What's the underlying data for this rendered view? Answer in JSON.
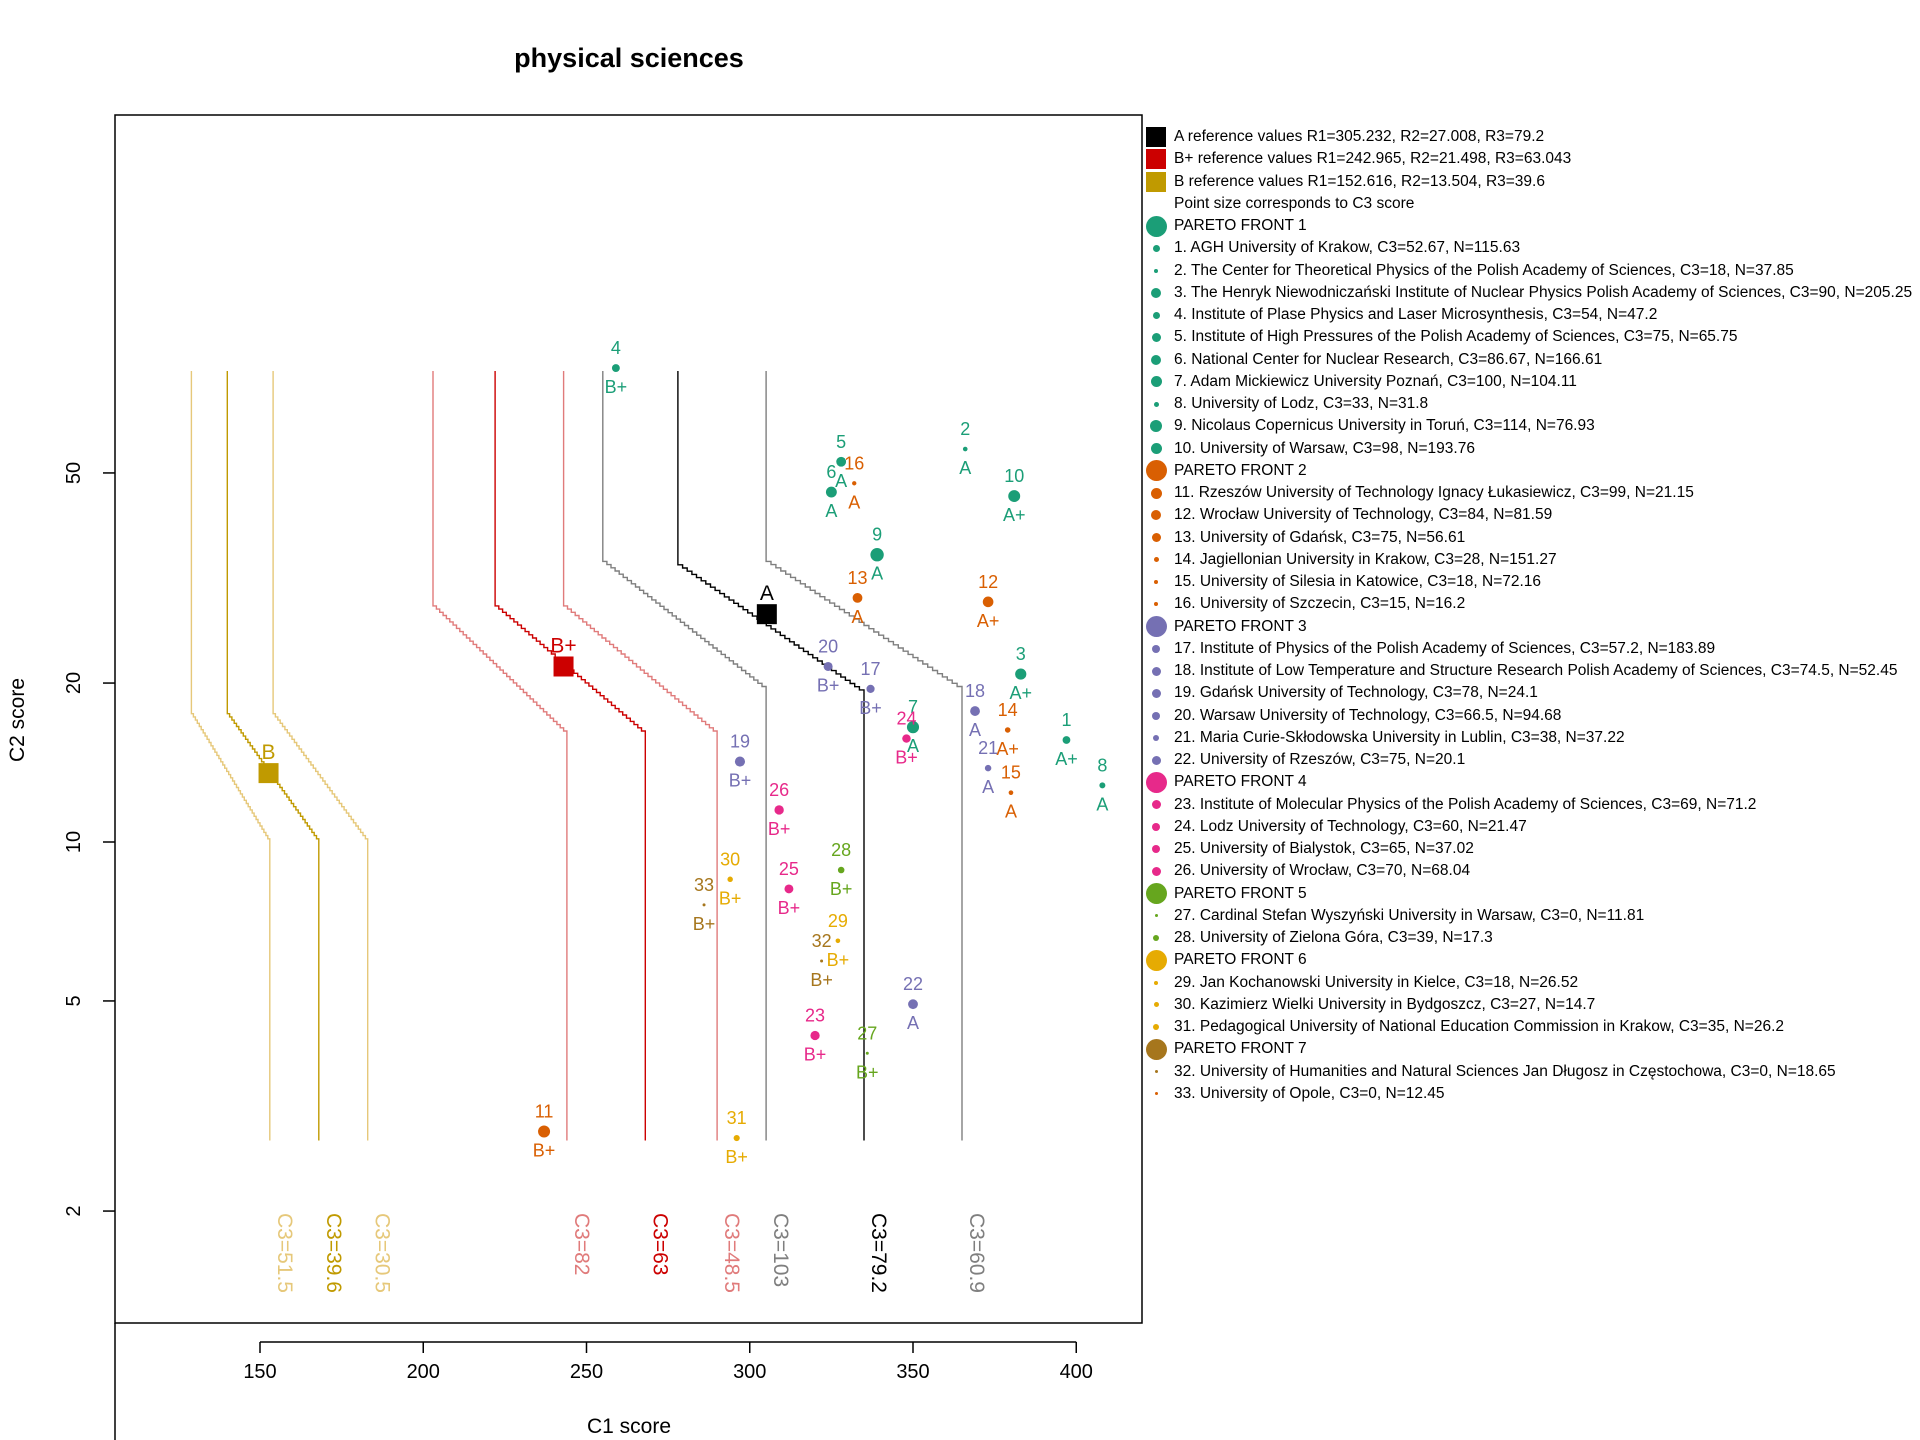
{
  "chart_data": {
    "type": "scatter",
    "title": "physical sciences",
    "xlabel": "C1 score",
    "ylabel": "C2 score",
    "x_scale": "linear",
    "y_scale": "log",
    "xlim": [
      100,
      420
    ],
    "ylim": [
      1.5,
      90
    ],
    "x_ticks": [
      150,
      200,
      250,
      300,
      350,
      400
    ],
    "y_ticks": [
      2,
      5,
      10,
      20,
      50
    ],
    "grid": false,
    "legend_position": "right",
    "colors": {
      "front1": "#1b9e77",
      "front2": "#d95f02",
      "front3": "#7570b3",
      "front4": "#e7298a",
      "front5": "#66a61e",
      "front6": "#e6ab02",
      "front7": "#a6761d",
      "A": "#000000",
      "A_band": "#7f7f7f",
      "Bplus": "#cc0000",
      "Bplus_band": "#e07b7b",
      "B": "#c09a00",
      "B_band": "#e6c87a"
    },
    "reference_points": [
      {
        "label": "A",
        "x": 305.232,
        "y": 27.008,
        "color": "#000000"
      },
      {
        "label": "B+",
        "x": 242.965,
        "y": 21.498,
        "color": "#cc0000"
      },
      {
        "label": "B",
        "x": 152.616,
        "y": 13.504,
        "color": "#c09a00"
      }
    ],
    "reference_curves": [
      {
        "label": "C3=79.2",
        "color": "#000000",
        "top_x": 278,
        "bend_y": 33.5,
        "x_low": 335
      },
      {
        "label": "C3=103",
        "color": "#7f7f7f",
        "top_x": 255,
        "bend_y": 34,
        "x_low": 305
      },
      {
        "label": "C3=60.9",
        "color": "#7f7f7f",
        "top_x": 305,
        "bend_y": 34,
        "x_low": 365
      },
      {
        "label": "C3=63",
        "color": "#cc0000",
        "top_x": 222,
        "bend_y": 28,
        "x_low": 268
      },
      {
        "label": "C3=82",
        "color": "#e07b7b",
        "top_x": 203,
        "bend_y": 28,
        "x_low": 244
      },
      {
        "label": "C3=48.5",
        "color": "#e07b7b",
        "top_x": 243,
        "bend_y": 28,
        "x_low": 290
      },
      {
        "label": "C3=39.6",
        "color": "#c09a00",
        "top_x": 140,
        "bend_y": 17.5,
        "x_low": 168
      },
      {
        "label": "C3=51.5",
        "color": "#e6c87a",
        "top_x": 129,
        "bend_y": 17.5,
        "x_low": 153
      },
      {
        "label": "C3=30.5",
        "color": "#e6c87a",
        "top_x": 154,
        "bend_y": 17.5,
        "x_low": 183
      }
    ],
    "points": [
      {
        "id": "1",
        "x": 397,
        "y": 15.6,
        "grade": "A+",
        "front": 1,
        "c3": 52.67
      },
      {
        "id": "2",
        "x": 366,
        "y": 55.5,
        "grade": "A",
        "front": 1,
        "c3": 18
      },
      {
        "id": "3",
        "x": 383,
        "y": 20.8,
        "grade": "A+",
        "front": 1,
        "c3": 90
      },
      {
        "id": "4",
        "x": 259,
        "y": 79,
        "grade": "B+",
        "front": 1,
        "c3": 54
      },
      {
        "id": "5",
        "x": 328,
        "y": 52.5,
        "grade": "A",
        "front": 1,
        "c3": 75
      },
      {
        "id": "6",
        "x": 325,
        "y": 46,
        "grade": "A",
        "front": 1,
        "c3": 86.67
      },
      {
        "id": "7",
        "x": 350,
        "y": 16.5,
        "grade": "A",
        "front": 1,
        "c3": 100
      },
      {
        "id": "8",
        "x": 408,
        "y": 12.8,
        "grade": "A",
        "front": 1,
        "c3": 33
      },
      {
        "id": "9",
        "x": 339,
        "y": 35,
        "grade": "A",
        "front": 1,
        "c3": 114
      },
      {
        "id": "10",
        "x": 381,
        "y": 45.2,
        "grade": "A+",
        "front": 1,
        "c3": 98
      },
      {
        "id": "11",
        "x": 237,
        "y": 2.83,
        "grade": "B+",
        "front": 2,
        "c3": 99
      },
      {
        "id": "12",
        "x": 373,
        "y": 28.5,
        "grade": "A+",
        "front": 2,
        "c3": 84
      },
      {
        "id": "13",
        "x": 333,
        "y": 29,
        "grade": "A",
        "front": 2,
        "c3": 75
      },
      {
        "id": "14",
        "x": 379,
        "y": 16.3,
        "grade": "A+",
        "front": 2,
        "c3": 28
      },
      {
        "id": "15",
        "x": 380,
        "y": 12.4,
        "grade": "A",
        "front": 2,
        "c3": 18
      },
      {
        "id": "16",
        "x": 332,
        "y": 47.8,
        "grade": "A",
        "front": 2,
        "c3": 15
      },
      {
        "id": "17",
        "x": 337,
        "y": 19.5,
        "grade": "B+",
        "front": 3,
        "c3": 57.2
      },
      {
        "id": "18",
        "x": 369,
        "y": 17.7,
        "grade": "A",
        "front": 3,
        "c3": 74.5
      },
      {
        "id": "19",
        "x": 297,
        "y": 14.2,
        "grade": "B+",
        "front": 3,
        "c3": 78
      },
      {
        "id": "20",
        "x": 324,
        "y": 21.5,
        "grade": "B+",
        "front": 3,
        "c3": 66.5
      },
      {
        "id": "21",
        "x": 373,
        "y": 13.8,
        "grade": "A",
        "front": 3,
        "c3": 38
      },
      {
        "id": "22",
        "x": 350,
        "y": 4.93,
        "grade": "A",
        "front": 3,
        "c3": 75
      },
      {
        "id": "23",
        "x": 320,
        "y": 4.3,
        "grade": "B+",
        "front": 4,
        "c3": 69
      },
      {
        "id": "24",
        "x": 348,
        "y": 15.7,
        "grade": "B+",
        "front": 4,
        "c3": 60
      },
      {
        "id": "25",
        "x": 312,
        "y": 8.15,
        "grade": "B+",
        "front": 4,
        "c3": 65
      },
      {
        "id": "26",
        "x": 309,
        "y": 11.5,
        "grade": "B+",
        "front": 4,
        "c3": 70
      },
      {
        "id": "27",
        "x": 336,
        "y": 3.98,
        "grade": "B+",
        "front": 5,
        "c3": 0
      },
      {
        "id": "28",
        "x": 328,
        "y": 8.85,
        "grade": "B+",
        "front": 5,
        "c3": 39
      },
      {
        "id": "29",
        "x": 327,
        "y": 6.5,
        "grade": "B+",
        "front": 6,
        "c3": 18
      },
      {
        "id": "30",
        "x": 294,
        "y": 8.5,
        "grade": "B+",
        "front": 6,
        "c3": 27
      },
      {
        "id": "31",
        "x": 296,
        "y": 2.75,
        "grade": "B+",
        "front": 6,
        "c3": 35
      },
      {
        "id": "32",
        "x": 322,
        "y": 5.95,
        "grade": "B+",
        "front": 7,
        "c3": 0
      },
      {
        "id": "33",
        "x": 286,
        "y": 7.6,
        "grade": "B+",
        "front": 7,
        "c3": 0
      }
    ]
  },
  "legend": [
    {
      "text": "A reference values R1=305.232, R2=27.008, R3=79.2",
      "swatch": "square",
      "color": "#000000"
    },
    {
      "text": "B+ reference values R1=242.965, R2=21.498, R3=63.043",
      "swatch": "square",
      "color": "#cc0000"
    },
    {
      "text": "B reference values R1=152.616, R2=13.504, R3=39.6",
      "swatch": "square",
      "color": "#c09a00"
    },
    {
      "text": "Point size corresponds to C3 score",
      "swatch": "none",
      "color": ""
    },
    {
      "text": "PARETO FRONT 1",
      "swatch": "big",
      "color": "#1b9e77"
    },
    {
      "text": "1. AGH University of Krakow, C3=52.67, N=115.63",
      "swatch": "dot",
      "size": 7,
      "color": "#1b9e77"
    },
    {
      "text": "2. The Center for Theoretical Physics of the Polish Academy of Sciences, C3=18, N=37.85",
      "swatch": "dot",
      "size": 4,
      "color": "#1b9e77"
    },
    {
      "text": "3. The Henryk Niewodniczański Institute of Nuclear Physics Polish Academy of Sciences, C3=90, N=205.25",
      "swatch": "dot",
      "size": 10,
      "color": "#1b9e77"
    },
    {
      "text": "4. Institute of Plase Physics and Laser Microsynthesis, C3=54, N=47.2",
      "swatch": "dot",
      "size": 7,
      "color": "#1b9e77"
    },
    {
      "text": "5. Institute of High Pressures of the Polish Academy of Sciences, C3=75, N=65.75",
      "swatch": "dot",
      "size": 9,
      "color": "#1b9e77"
    },
    {
      "text": "6. National Center for Nuclear Research, C3=86.67, N=166.61",
      "swatch": "dot",
      "size": 10,
      "color": "#1b9e77"
    },
    {
      "text": "7. Adam Mickiewicz University Poznań, C3=100, N=104.11",
      "swatch": "dot",
      "size": 11,
      "color": "#1b9e77"
    },
    {
      "text": "8. University of Lodz, C3=33, N=31.8",
      "swatch": "dot",
      "size": 5,
      "color": "#1b9e77"
    },
    {
      "text": "9. Nicolaus Copernicus University in Toruń, C3=114, N=76.93",
      "swatch": "dot",
      "size": 12,
      "color": "#1b9e77"
    },
    {
      "text": "10. University of Warsaw, C3=98, N=193.76",
      "swatch": "dot",
      "size": 11,
      "color": "#1b9e77"
    },
    {
      "text": "PARETO FRONT 2",
      "swatch": "big",
      "color": "#d95f02"
    },
    {
      "text": "11. Rzeszów University of Technology Ignacy Łukasiewicz, C3=99, N=21.15",
      "swatch": "dot",
      "size": 11,
      "color": "#d95f02"
    },
    {
      "text": "12. Wrocław University of Technology, C3=84, N=81.59",
      "swatch": "dot",
      "size": 10,
      "color": "#d95f02"
    },
    {
      "text": "13. University of Gdańsk, C3=75, N=56.61",
      "swatch": "dot",
      "size": 9,
      "color": "#d95f02"
    },
    {
      "text": "14. Jagiellonian University in Krakow, C3=28, N=151.27",
      "swatch": "dot",
      "size": 5,
      "color": "#d95f02"
    },
    {
      "text": "15. University of Silesia in Katowice, C3=18, N=72.16",
      "swatch": "dot",
      "size": 4,
      "color": "#d95f02"
    },
    {
      "text": "16. University of Szczecin, C3=15, N=16.2",
      "swatch": "dot",
      "size": 4,
      "color": "#d95f02"
    },
    {
      "text": "PARETO FRONT 3",
      "swatch": "big",
      "color": "#7570b3"
    },
    {
      "text": "17. Institute of Physics of the Polish Academy of Sciences, C3=57.2, N=183.89",
      "swatch": "dot",
      "size": 8,
      "color": "#7570b3"
    },
    {
      "text": "18. Institute of Low Temperature and Structure Research Polish Academy of Sciences, C3=74.5, N=52.45",
      "swatch": "dot",
      "size": 9,
      "color": "#7570b3"
    },
    {
      "text": "19. Gdańsk University of Technology, C3=78, N=24.1",
      "swatch": "dot",
      "size": 9,
      "color": "#7570b3"
    },
    {
      "text": "20. Warsaw University of Technology, C3=66.5, N=94.68",
      "swatch": "dot",
      "size": 8,
      "color": "#7570b3"
    },
    {
      "text": "21. Maria Curie-Skłodowska University in Lublin, C3=38, N=37.22",
      "swatch": "dot",
      "size": 6,
      "color": "#7570b3"
    },
    {
      "text": "22. University of Rzeszów, C3=75, N=20.1",
      "swatch": "dot",
      "size": 9,
      "color": "#7570b3"
    },
    {
      "text": "PARETO FRONT 4",
      "swatch": "big",
      "color": "#e7298a"
    },
    {
      "text": "23. Institute of Molecular Physics of the Polish Academy of Sciences, C3=69, N=71.2",
      "swatch": "dot",
      "size": 9,
      "color": "#e7298a"
    },
    {
      "text": "24. Lodz University of Technology, C3=60, N=21.47",
      "swatch": "dot",
      "size": 8,
      "color": "#e7298a"
    },
    {
      "text": "25. University of Bialystok, C3=65, N=37.02",
      "swatch": "dot",
      "size": 8,
      "color": "#e7298a"
    },
    {
      "text": "26. University of Wrocław, C3=70, N=68.04",
      "swatch": "dot",
      "size": 9,
      "color": "#e7298a"
    },
    {
      "text": "PARETO FRONT 5",
      "swatch": "big",
      "color": "#66a61e"
    },
    {
      "text": "27. Cardinal Stefan Wyszyński University in Warsaw, C3=0, N=11.81",
      "swatch": "dot",
      "size": 3,
      "color": "#66a61e"
    },
    {
      "text": "28. University of Zielona Góra, C3=39, N=17.3",
      "swatch": "dot",
      "size": 6,
      "color": "#66a61e"
    },
    {
      "text": "PARETO FRONT 6",
      "swatch": "big",
      "color": "#e6ab02"
    },
    {
      "text": "29. Jan Kochanowski University in Kielce, C3=18, N=26.52",
      "swatch": "dot",
      "size": 4,
      "color": "#e6ab02"
    },
    {
      "text": "30. Kazimierz Wielki University in Bydgoszcz, C3=27, N=14.7",
      "swatch": "dot",
      "size": 5,
      "color": "#e6ab02"
    },
    {
      "text": "31. Pedagogical University of National Education Commission in Krakow, C3=35, N=26.2",
      "swatch": "dot",
      "size": 6,
      "color": "#e6ab02"
    },
    {
      "text": "PARETO FRONT 7",
      "swatch": "big",
      "color": "#a6761d"
    },
    {
      "text": "32. University of Humanities and Natural Sciences Jan Długosz in Częstochowa, C3=0, N=18.65",
      "swatch": "dot",
      "size": 3,
      "color": "#a6761d"
    },
    {
      "text": "33. University of Opole, C3=0, N=12.45",
      "swatch": "dot",
      "size": 3,
      "color": "#d95f02"
    }
  ]
}
